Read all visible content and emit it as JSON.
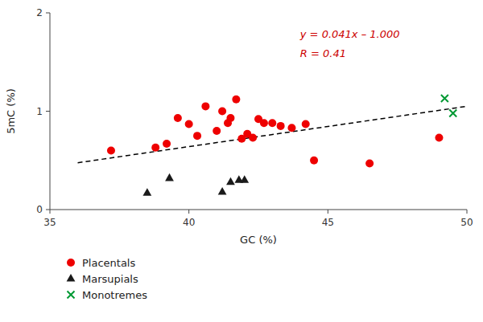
{
  "chart_data": {
    "type": "scatter",
    "x_label": "GC (%)",
    "y_label": "5mC (%)",
    "xlim": [
      35,
      50
    ],
    "ylim": [
      0,
      2
    ],
    "xticks": [
      35,
      40,
      45,
      50
    ],
    "yticks": [
      0,
      1,
      2
    ],
    "grid": false,
    "legend": "bottom-left",
    "series": [
      {
        "name": "Placentals",
        "type": "scatter",
        "color": "#ee0000",
        "marker": "circle",
        "x": [
          37.2,
          38.8,
          39.2,
          39.6,
          40.0,
          40.3,
          40.6,
          41.0,
          41.2,
          41.4,
          41.5,
          41.7,
          41.9,
          42.1,
          42.3,
          42.5,
          42.7,
          43.0,
          43.3,
          43.7,
          44.2,
          44.5,
          46.5,
          49.0
        ],
        "values": [
          0.6,
          0.63,
          0.67,
          0.93,
          0.87,
          0.75,
          1.05,
          0.8,
          1.0,
          0.88,
          0.93,
          1.12,
          0.72,
          0.77,
          0.73,
          0.92,
          0.88,
          0.88,
          0.85,
          0.83,
          0.87,
          0.5,
          0.47,
          0.73
        ]
      },
      {
        "name": "Marsupials",
        "type": "scatter",
        "color": "#1a1a1a",
        "marker": "triangle",
        "x": [
          38.5,
          39.3,
          41.2,
          41.5,
          41.8,
          42.0
        ],
        "values": [
          0.17,
          0.32,
          0.18,
          0.28,
          0.3,
          0.3
        ]
      },
      {
        "name": "Monotremes",
        "type": "scatter",
        "color": "#009933",
        "marker": "x",
        "x": [
          49.2,
          49.5
        ],
        "values": [
          1.13,
          0.98
        ]
      },
      {
        "type": "line",
        "color": "#000000",
        "line_style": "dashed",
        "x": [
          36,
          50
        ],
        "values": [
          0.476,
          1.05
        ]
      }
    ],
    "annotations": [
      {
        "text": "y = 0.041x – 1.000",
        "color": "#cc0000"
      },
      {
        "text": "R = 0.41",
        "color": "#cc0000"
      }
    ]
  }
}
